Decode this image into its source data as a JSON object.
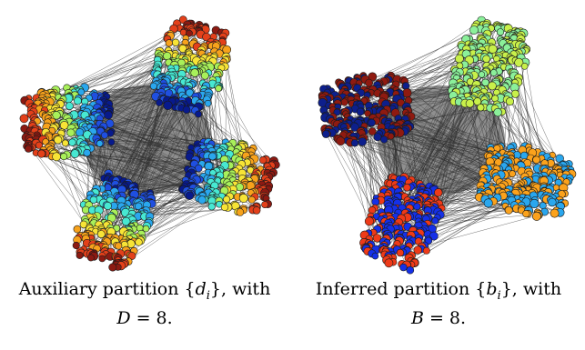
{
  "figure": {
    "left_panel": {
      "caption_line1_prefix": "Auxiliary partition {",
      "caption_var": "d",
      "caption_sub": "i",
      "caption_line1_suffix": "}, with",
      "caption_line2_var": "D",
      "caption_line2_rest": " = 8.",
      "groups": 8,
      "palette_order": [
        "#081a8c",
        "#1f4fe0",
        "#2aa7ee",
        "#47e8d2",
        "#a8f05a",
        "#f7e436",
        "#f7a21c",
        "#e3401a",
        "#8c1a12"
      ]
    },
    "right_panel": {
      "caption_line1_prefix": "Inferred partition {",
      "caption_var": "b",
      "caption_sub": "i",
      "caption_line1_suffix": "}, with",
      "caption_line2_var": "B",
      "caption_line2_rest": " = 8.",
      "groups": 8,
      "palette_order": [
        "#8f1a10",
        "#0d1f8c",
        "#8bf09a",
        "#c8f04a",
        "#fba21c",
        "#2aa7ee",
        "#1530e8",
        "#ee3a18"
      ]
    },
    "edge_color": "#2b2b2b",
    "cluster_color_node_stroke": "#1a1a1a"
  }
}
